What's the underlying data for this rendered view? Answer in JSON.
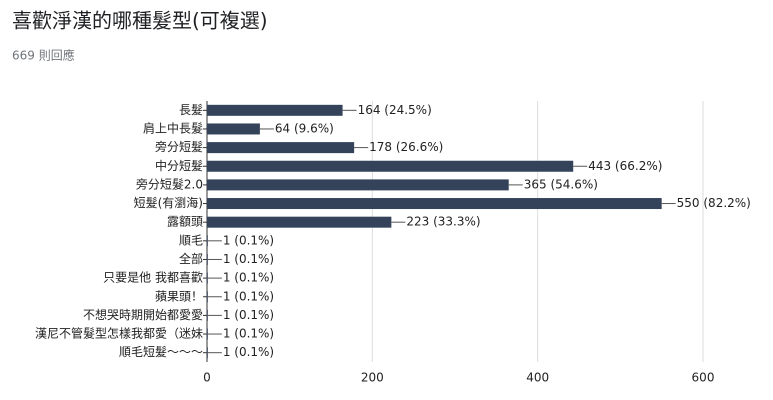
{
  "chart_data": {
    "type": "bar",
    "orientation": "horizontal",
    "title": "喜歡淨漢的哪種髮型(可複選)",
    "subtitle": "669 則回應",
    "categories": [
      "長髮",
      "肩上中長髮",
      "旁分短髮",
      "中分短髮",
      "旁分短髮2.0",
      "短髮(有瀏海)",
      "露額頭",
      "順毛",
      "全部",
      "只要是他 我都喜歡",
      "蘋果頭！",
      "不想哭時期開始都愛愛",
      "漢尼不管髮型怎樣我都愛（迷妹",
      "順毛短髮～～～"
    ],
    "values": [
      164,
      64,
      178,
      443,
      365,
      550,
      223,
      1,
      1,
      1,
      1,
      1,
      1,
      1
    ],
    "value_labels": [
      "164 (24.5%)",
      "64 (9.6%)",
      "178 (26.6%)",
      "443 (66.2%)",
      "365 (54.6%)",
      "550 (82.2%)",
      "223 (33.3%)",
      "1 (0.1%)",
      "1 (0.1%)",
      "1 (0.1%)",
      "1 (0.1%)",
      "1 (0.1%)",
      "1 (0.1%)",
      "1 (0.1%)"
    ],
    "color": "#35435a",
    "xlim": [
      0,
      600
    ],
    "xticks": [
      0,
      200,
      400,
      600
    ],
    "grid": true
  }
}
